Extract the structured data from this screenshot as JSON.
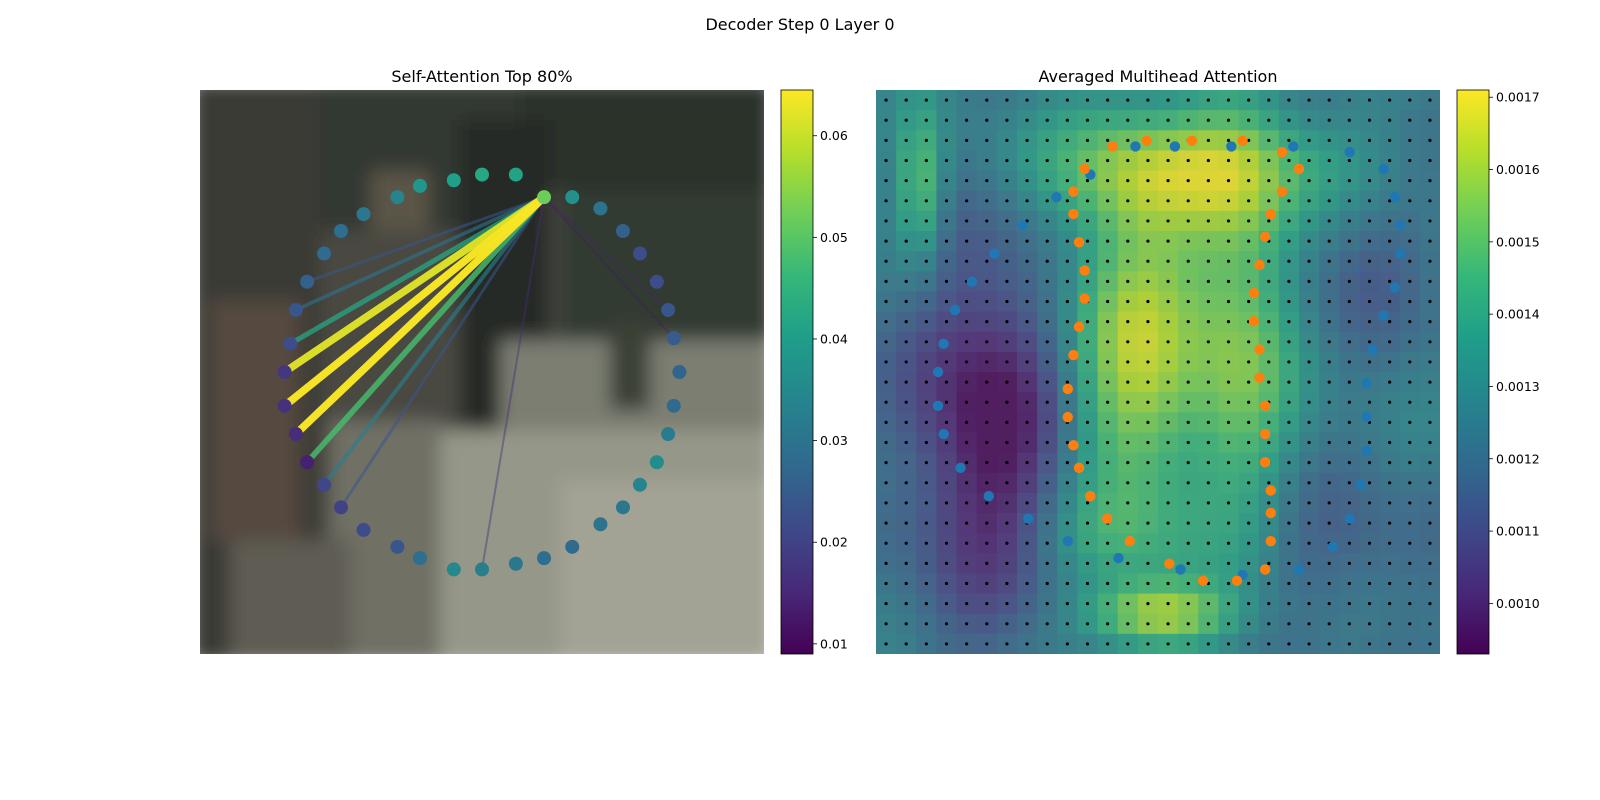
{
  "figure": {
    "title": "Decoder Step 0 Layer 0"
  },
  "colors": {
    "viridis": [
      "#440154",
      "#482878",
      "#3e4989",
      "#31688e",
      "#26828e",
      "#1f9e89",
      "#35b779",
      "#6ece58",
      "#b5de2b",
      "#fde725"
    ],
    "blue_points": "#1f77b4",
    "orange_points": "#ff7f0e",
    "grid_dots": "#000000"
  },
  "chart_data": [
    {
      "type": "scatter",
      "title": "Self-Attention Top 80%",
      "background": "blurred photo",
      "colorbar": {
        "min": 0.009,
        "max": 0.0645,
        "ticks": [
          0.01,
          0.02,
          0.03,
          0.04,
          0.05,
          0.06
        ]
      },
      "query_point": 0,
      "points": [
        {
          "x": 0.61,
          "y": 0.19,
          "v": 0.052
        },
        {
          "x": 0.66,
          "y": 0.19,
          "v": 0.037
        },
        {
          "x": 0.71,
          "y": 0.21,
          "v": 0.03
        },
        {
          "x": 0.75,
          "y": 0.25,
          "v": 0.026
        },
        {
          "x": 0.78,
          "y": 0.29,
          "v": 0.022
        },
        {
          "x": 0.81,
          "y": 0.34,
          "v": 0.022
        },
        {
          "x": 0.83,
          "y": 0.39,
          "v": 0.024
        },
        {
          "x": 0.84,
          "y": 0.44,
          "v": 0.025
        },
        {
          "x": 0.85,
          "y": 0.5,
          "v": 0.027
        },
        {
          "x": 0.84,
          "y": 0.56,
          "v": 0.028
        },
        {
          "x": 0.83,
          "y": 0.61,
          "v": 0.032
        },
        {
          "x": 0.81,
          "y": 0.66,
          "v": 0.036
        },
        {
          "x": 0.78,
          "y": 0.7,
          "v": 0.034
        },
        {
          "x": 0.75,
          "y": 0.74,
          "v": 0.031
        },
        {
          "x": 0.71,
          "y": 0.77,
          "v": 0.03
        },
        {
          "x": 0.66,
          "y": 0.81,
          "v": 0.028
        },
        {
          "x": 0.61,
          "y": 0.83,
          "v": 0.029
        },
        {
          "x": 0.56,
          "y": 0.84,
          "v": 0.031
        },
        {
          "x": 0.5,
          "y": 0.85,
          "v": 0.033
        },
        {
          "x": 0.45,
          "y": 0.85,
          "v": 0.035
        },
        {
          "x": 0.39,
          "y": 0.83,
          "v": 0.029
        },
        {
          "x": 0.35,
          "y": 0.81,
          "v": 0.024
        },
        {
          "x": 0.29,
          "y": 0.78,
          "v": 0.022
        },
        {
          "x": 0.25,
          "y": 0.74,
          "v": 0.02
        },
        {
          "x": 0.22,
          "y": 0.7,
          "v": 0.021
        },
        {
          "x": 0.19,
          "y": 0.66,
          "v": 0.014
        },
        {
          "x": 0.17,
          "y": 0.61,
          "v": 0.016
        },
        {
          "x": 0.15,
          "y": 0.56,
          "v": 0.017
        },
        {
          "x": 0.15,
          "y": 0.5,
          "v": 0.018
        },
        {
          "x": 0.16,
          "y": 0.45,
          "v": 0.022
        },
        {
          "x": 0.17,
          "y": 0.39,
          "v": 0.024
        },
        {
          "x": 0.19,
          "y": 0.34,
          "v": 0.026
        },
        {
          "x": 0.22,
          "y": 0.29,
          "v": 0.028
        },
        {
          "x": 0.25,
          "y": 0.25,
          "v": 0.029
        },
        {
          "x": 0.29,
          "y": 0.22,
          "v": 0.031
        },
        {
          "x": 0.35,
          "y": 0.19,
          "v": 0.034
        },
        {
          "x": 0.39,
          "y": 0.17,
          "v": 0.038
        },
        {
          "x": 0.45,
          "y": 0.16,
          "v": 0.04
        },
        {
          "x": 0.5,
          "y": 0.15,
          "v": 0.042
        },
        {
          "x": 0.56,
          "y": 0.15,
          "v": 0.041
        }
      ],
      "links": [
        {
          "to": 26,
          "w": 0.064
        },
        {
          "to": 27,
          "w": 0.064
        },
        {
          "to": 28,
          "w": 0.062
        },
        {
          "to": 25,
          "w": 0.048
        },
        {
          "to": 29,
          "w": 0.042
        },
        {
          "to": 24,
          "w": 0.033
        },
        {
          "to": 30,
          "w": 0.03
        },
        {
          "to": 23,
          "w": 0.024
        },
        {
          "to": 31,
          "w": 0.024
        },
        {
          "to": 18,
          "w": 0.016
        },
        {
          "to": 6,
          "w": 0.014
        },
        {
          "to": 7,
          "w": 0.012
        }
      ]
    },
    {
      "type": "heatmap",
      "title": "Averaged Multihead Attention",
      "colorbar": {
        "min": 0.00093,
        "max": 0.00171,
        "ticks": [
          0.001,
          0.0011,
          0.0012,
          0.0013,
          0.0014,
          0.0015,
          0.0016,
          0.0017
        ]
      },
      "grid": {
        "rows": 28,
        "cols": 28
      },
      "series": [
        {
          "values": [
            [
              0.46,
              0.1
            ],
            [
              0.53,
              0.1
            ],
            [
              0.63,
              0.1
            ],
            [
              0.74,
              0.1
            ],
            [
              0.84,
              0.11
            ],
            [
              0.9,
              0.14
            ],
            [
              0.92,
              0.19
            ],
            [
              0.93,
              0.24
            ],
            [
              0.93,
              0.29
            ],
            [
              0.92,
              0.35
            ],
            [
              0.9,
              0.4
            ],
            [
              0.88,
              0.46
            ],
            [
              0.87,
              0.52
            ],
            [
              0.87,
              0.58
            ],
            [
              0.87,
              0.64
            ],
            [
              0.86,
              0.7
            ],
            [
              0.84,
              0.76
            ],
            [
              0.81,
              0.81
            ],
            [
              0.75,
              0.85
            ],
            [
              0.65,
              0.86
            ],
            [
              0.54,
              0.85
            ],
            [
              0.43,
              0.83
            ],
            [
              0.34,
              0.8
            ],
            [
              0.27,
              0.76
            ],
            [
              0.2,
              0.72
            ],
            [
              0.15,
              0.67
            ],
            [
              0.12,
              0.61
            ],
            [
              0.11,
              0.56
            ],
            [
              0.11,
              0.5
            ],
            [
              0.12,
              0.45
            ],
            [
              0.14,
              0.39
            ],
            [
              0.17,
              0.34
            ],
            [
              0.21,
              0.29
            ],
            [
              0.26,
              0.24
            ],
            [
              0.32,
              0.19
            ],
            [
              0.38,
              0.15
            ]
          ]
        },
        {
          "values": [
            [
              0.37,
              0.14
            ],
            [
              0.42,
              0.1
            ],
            [
              0.48,
              0.09
            ],
            [
              0.56,
              0.09
            ],
            [
              0.65,
              0.09
            ],
            [
              0.72,
              0.11
            ],
            [
              0.75,
              0.14
            ],
            [
              0.72,
              0.18
            ],
            [
              0.7,
              0.22
            ],
            [
              0.69,
              0.26
            ],
            [
              0.68,
              0.31
            ],
            [
              0.67,
              0.36
            ],
            [
              0.67,
              0.41
            ],
            [
              0.68,
              0.46
            ],
            [
              0.68,
              0.51
            ],
            [
              0.69,
              0.56
            ],
            [
              0.69,
              0.61
            ],
            [
              0.69,
              0.66
            ],
            [
              0.7,
              0.71
            ],
            [
              0.7,
              0.75
            ],
            [
              0.7,
              0.8
            ],
            [
              0.69,
              0.85
            ],
            [
              0.64,
              0.87
            ],
            [
              0.58,
              0.87
            ],
            [
              0.52,
              0.84
            ],
            [
              0.45,
              0.8
            ],
            [
              0.41,
              0.76
            ],
            [
              0.38,
              0.72
            ],
            [
              0.36,
              0.67
            ],
            [
              0.35,
              0.63
            ],
            [
              0.34,
              0.58
            ],
            [
              0.34,
              0.53
            ],
            [
              0.35,
              0.47
            ],
            [
              0.36,
              0.42
            ],
            [
              0.37,
              0.37
            ],
            [
              0.37,
              0.32
            ],
            [
              0.36,
              0.27
            ],
            [
              0.35,
              0.22
            ],
            [
              0.35,
              0.18
            ]
          ]
        }
      ]
    }
  ]
}
